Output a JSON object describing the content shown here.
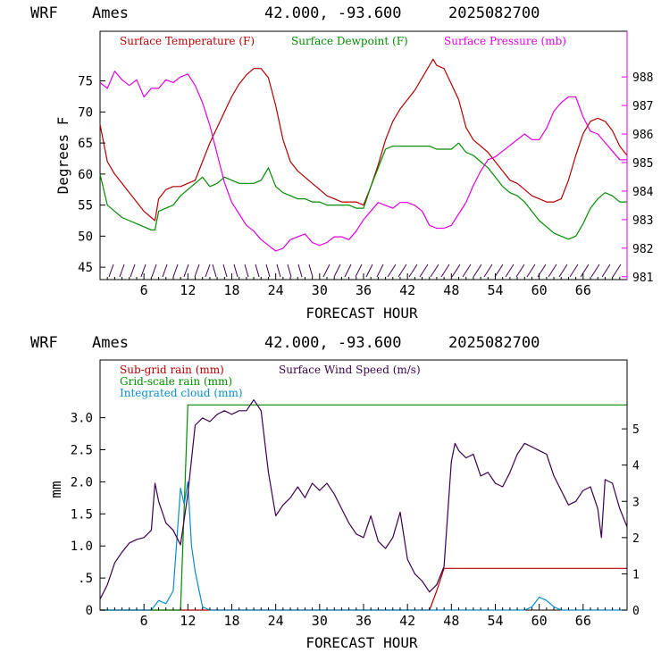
{
  "panels": [
    {
      "header": {
        "model": "WRF",
        "site": "Ames",
        "coords": "42.000, -93.600",
        "run": "2025082700"
      },
      "xlabel": "FORECAST HOUR",
      "ylabel": "Degrees F",
      "legend": [
        "Surface Temperature (F)",
        "Surface Dewpoint (F)",
        "Surface Pressure (mb)"
      ]
    },
    {
      "header": {
        "model": "WRF",
        "site": "Ames",
        "coords": "42.000, -93.600",
        "run": "2025082700"
      },
      "xlabel": "FORECAST HOUR",
      "ylabel": "mm",
      "legend": [
        "Sub-grid rain (mm)",
        "Grid-scale rain (mm)",
        "Integrated cloud (mm)",
        "Surface Wind Speed (m/s)"
      ]
    }
  ],
  "colors": {
    "temp": "#b40000",
    "dew": "#008c00",
    "pres": "#e100e1",
    "wind": "#3c0050",
    "cloud": "#0a8cc8",
    "axis": "#000000"
  },
  "chart_data": [
    {
      "type": "line",
      "title": "WRF Ames 42.000, -93.600 2025082700",
      "xlabel": "FORECAST HOUR",
      "ylabel": "Degrees F",
      "xlim": [
        0,
        72
      ],
      "xticks": [
        "6",
        "12",
        "18",
        "24",
        "30",
        "36",
        "42",
        "48",
        "54",
        "60",
        "66"
      ],
      "ylim": [
        43,
        83
      ],
      "yticks": [
        "45",
        "50",
        "55",
        "60",
        "65",
        "70",
        "75"
      ],
      "y2lim": [
        980.9,
        989.6
      ],
      "y2ticks": [
        "981",
        "982",
        "983",
        "984",
        "985",
        "986",
        "987",
        "988"
      ],
      "legend_position": "top",
      "series": [
        {
          "name": "Surface Temperature (F)",
          "axis": "left",
          "x": [
            0,
            1,
            2,
            3,
            4,
            5,
            6,
            7,
            7.5,
            8,
            9,
            10,
            11,
            12,
            13,
            14,
            15,
            16,
            17,
            18,
            19,
            20,
            21,
            22,
            23,
            24,
            25,
            26,
            27,
            28,
            29,
            30,
            31,
            32,
            33,
            34,
            35,
            36,
            37,
            38,
            39,
            40,
            41,
            42,
            43,
            44,
            45,
            45.5,
            46,
            47,
            48,
            49,
            50,
            51,
            52,
            53,
            54,
            55,
            56,
            57,
            58,
            59,
            60,
            61,
            62,
            63,
            64,
            65,
            66,
            67,
            68,
            69,
            70,
            71,
            72
          ],
          "values": [
            68,
            62,
            60,
            58.5,
            57,
            55.5,
            54,
            53,
            52.5,
            56,
            57.5,
            58,
            58,
            58.5,
            59,
            62,
            65,
            67.5,
            70,
            72.5,
            74.5,
            76,
            77,
            77,
            75.5,
            71,
            65.5,
            62,
            60.5,
            59.5,
            58.5,
            57.5,
            56.5,
            56,
            55.5,
            55.5,
            55.5,
            55,
            58,
            61.5,
            65.5,
            68.5,
            70.5,
            72,
            73.5,
            75.5,
            77.5,
            78.5,
            77.5,
            77,
            74.5,
            72,
            67.5,
            65.5,
            64.5,
            63.5,
            62,
            60.5,
            59,
            58.5,
            57.5,
            56.5,
            56,
            55.5,
            55.5,
            56,
            59,
            63,
            66.5,
            68.5,
            69,
            68.5,
            67,
            64.5,
            63
          ]
        },
        {
          "name": "Surface Dewpoint (F)",
          "axis": "left",
          "x": [
            0,
            1,
            2,
            3,
            4,
            5,
            6,
            7,
            7.5,
            8,
            9,
            10,
            11,
            12,
            13,
            14,
            15,
            16,
            17,
            18,
            19,
            20,
            21,
            22,
            23,
            24,
            25,
            26,
            27,
            28,
            29,
            30,
            31,
            32,
            33,
            34,
            35,
            36,
            37,
            38,
            39,
            40,
            41,
            42,
            43,
            44,
            45,
            46,
            47,
            48,
            49,
            50,
            51,
            52,
            53,
            54,
            55,
            56,
            57,
            58,
            59,
            60,
            61,
            62,
            63,
            64,
            65,
            66,
            67,
            68,
            69,
            70,
            71,
            72
          ],
          "values": [
            60,
            55,
            54,
            53,
            52.5,
            52,
            51.5,
            51,
            51,
            54,
            54.5,
            55,
            56.5,
            57.5,
            58.5,
            59.5,
            58,
            58.5,
            59.5,
            59,
            58.5,
            58.5,
            58.5,
            59,
            61,
            58,
            57,
            56.5,
            56,
            56,
            55.5,
            55.5,
            55,
            55,
            55,
            55,
            54.5,
            54.5,
            58,
            61,
            64,
            64.5,
            64.5,
            64.5,
            64.5,
            64.5,
            64.5,
            64,
            64,
            64,
            65,
            63.5,
            63,
            62,
            61,
            59.5,
            58,
            57,
            56.5,
            55.5,
            54,
            52.5,
            51.5,
            50.5,
            50,
            49.5,
            50,
            52,
            54.5,
            56,
            57,
            56.5,
            55.5,
            55.5
          ]
        },
        {
          "name": "Surface Pressure (mb)",
          "axis": "right",
          "x": [
            0,
            1,
            2,
            3,
            4,
            5,
            6,
            7,
            8,
            9,
            10,
            11,
            12,
            13,
            14,
            15,
            16,
            17,
            18,
            19,
            20,
            21,
            22,
            23,
            24,
            25,
            26,
            27,
            28,
            29,
            30,
            31,
            32,
            33,
            34,
            35,
            36,
            37,
            38,
            39,
            40,
            41,
            42,
            43,
            44,
            45,
            46,
            47,
            48,
            49,
            50,
            51,
            52,
            53,
            54,
            55,
            56,
            57,
            58,
            59,
            60,
            61,
            62,
            63,
            64,
            65,
            66,
            67,
            68,
            69,
            70,
            71,
            72
          ],
          "values": [
            987.8,
            987.6,
            988.2,
            987.9,
            987.7,
            987.9,
            987.3,
            987.6,
            987.6,
            987.9,
            987.8,
            988.0,
            988.1,
            987.7,
            987.1,
            986.3,
            985.3,
            984.3,
            983.6,
            983.2,
            982.8,
            982.6,
            982.3,
            982.1,
            981.9,
            982.0,
            982.3,
            982.4,
            982.5,
            982.2,
            982.1,
            982.2,
            982.4,
            982.4,
            982.3,
            982.6,
            983.0,
            983.3,
            983.6,
            983.5,
            983.4,
            983.6,
            983.6,
            983.5,
            983.3,
            982.8,
            982.7,
            982.7,
            982.8,
            983.2,
            983.6,
            984.2,
            984.7,
            985.1,
            985.2,
            985.4,
            985.6,
            985.8,
            986.0,
            985.8,
            985.8,
            986.2,
            986.8,
            987.1,
            987.3,
            987.3,
            986.6,
            986.1,
            986.0,
            985.7,
            985.4,
            985.1,
            985.1
          ]
        }
      ]
    },
    {
      "type": "line",
      "title": "WRF Ames 42.000, -93.600 2025082700",
      "xlabel": "FORECAST HOUR",
      "ylabel": "mm",
      "xlim": [
        0,
        72
      ],
      "xticks": [
        "6",
        "12",
        "18",
        "24",
        "30",
        "36",
        "42",
        "48",
        "54",
        "60",
        "66"
      ],
      "ylim": [
        0,
        3.9
      ],
      "yticks": [
        "0",
        ".5",
        "1.0",
        "1.5",
        "2.0",
        "2.5",
        "3.0"
      ],
      "y2lim": [
        0,
        6.9
      ],
      "y2ticks": [
        "0",
        "1",
        "2",
        "3",
        "4",
        "5"
      ],
      "legend_position": "top-left",
      "series": [
        {
          "name": "Sub-grid rain (mm)",
          "axis": "left",
          "x": [
            0,
            44,
            45,
            46,
            47,
            72
          ],
          "values": [
            0,
            0,
            0,
            0.3,
            0.65,
            0.65
          ]
        },
        {
          "name": "Grid-scale rain (mm)",
          "axis": "left",
          "x": [
            0,
            11,
            12,
            13,
            72
          ],
          "values": [
            0,
            0,
            3.2,
            3.2,
            3.2
          ]
        },
        {
          "name": "Integrated cloud (mm)",
          "axis": "left",
          "x": [
            0,
            7,
            8,
            9,
            10,
            10.5,
            11,
            11.5,
            12,
            12.5,
            13,
            14,
            15,
            16,
            58,
            59,
            60,
            61,
            62,
            63,
            72
          ],
          "values": [
            0,
            0,
            0.15,
            0.1,
            0.3,
            1.1,
            1.9,
            1.65,
            2.0,
            1.0,
            0.6,
            0.05,
            0,
            0,
            0,
            0.05,
            0.2,
            0.15,
            0.05,
            0,
            0
          ]
        },
        {
          "name": "Surface Wind Speed (m/s)",
          "axis": "right",
          "x": [
            0,
            1,
            2,
            3,
            4,
            5,
            6,
            7,
            7.5,
            8,
            9,
            10,
            11,
            12,
            13,
            14,
            15,
            16,
            17,
            18,
            19,
            20,
            21,
            22,
            23,
            24,
            25,
            26,
            27,
            28,
            29,
            30,
            31,
            32,
            33,
            34,
            35,
            36,
            37,
            38,
            39,
            40,
            41,
            42,
            43,
            44,
            45,
            46,
            47,
            48,
            48.5,
            49,
            50,
            51,
            52,
            53,
            54,
            55,
            56,
            57,
            58,
            59,
            60,
            61,
            62,
            63,
            64,
            65,
            66,
            67,
            68,
            68.5,
            69,
            70,
            71,
            72
          ],
          "values": [
            0.3,
            0.7,
            1.3,
            1.6,
            1.85,
            1.95,
            2.0,
            2.2,
            3.5,
            3.0,
            2.4,
            2.2,
            1.8,
            3.2,
            5.1,
            5.3,
            5.2,
            5.4,
            5.5,
            5.4,
            5.5,
            5.5,
            5.8,
            5.5,
            3.8,
            2.6,
            2.9,
            3.1,
            3.4,
            3.1,
            3.5,
            3.3,
            3.5,
            3.2,
            2.8,
            2.4,
            2.1,
            2.0,
            2.6,
            1.9,
            1.7,
            2.0,
            2.7,
            1.4,
            1.0,
            0.8,
            0.5,
            0.7,
            1.2,
            4.1,
            4.6,
            4.4,
            4.2,
            4.3,
            3.7,
            3.8,
            3.5,
            3.4,
            3.8,
            4.3,
            4.6,
            4.5,
            4.4,
            4.3,
            3.7,
            3.3,
            2.9,
            3.0,
            3.3,
            3.4,
            2.8,
            2.0,
            3.6,
            3.5,
            2.8,
            2.3
          ]
        }
      ]
    }
  ]
}
